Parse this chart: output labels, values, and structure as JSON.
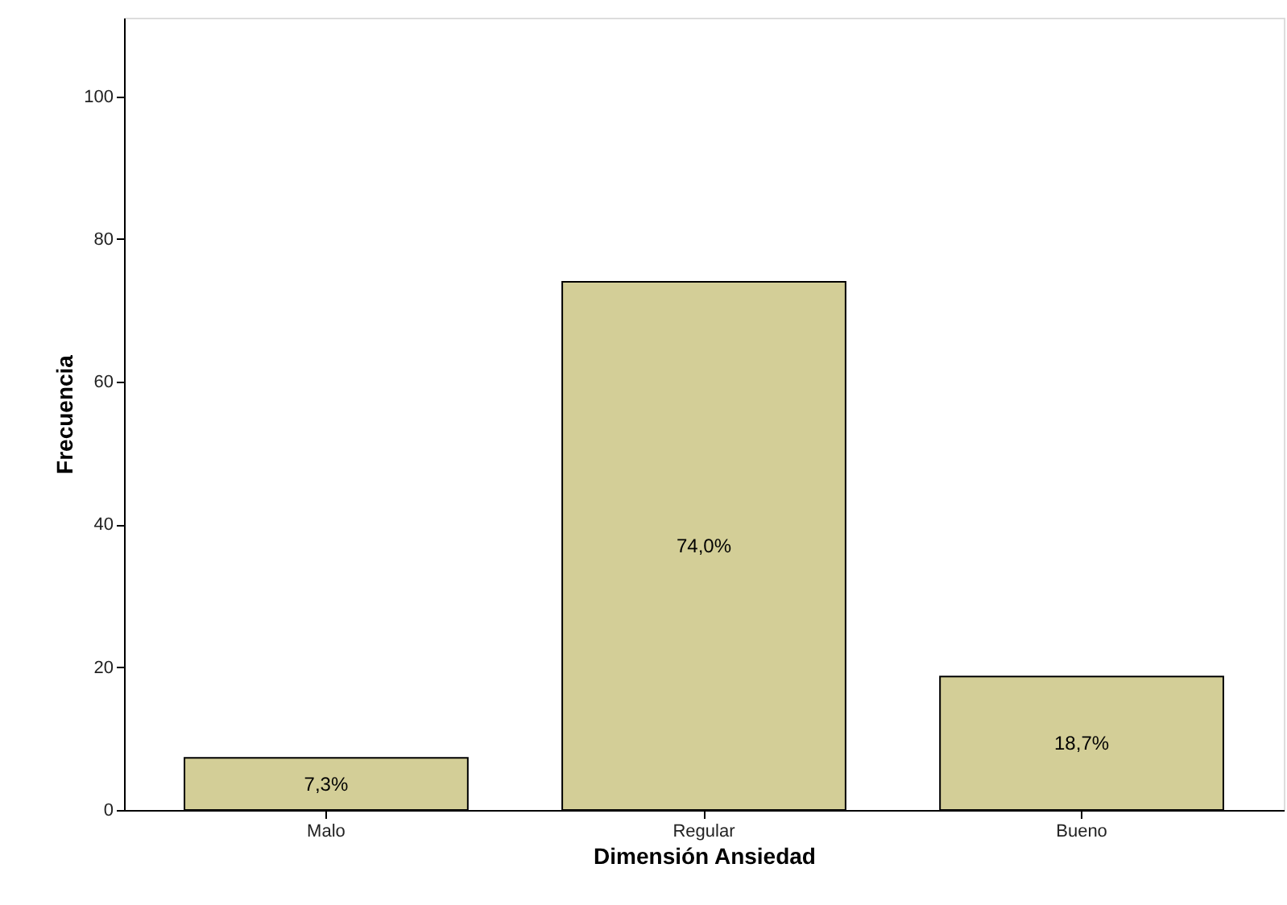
{
  "chart_data": {
    "type": "bar",
    "xlabel": "Dimensión Ansiedad",
    "ylabel": "Frecuencia",
    "categories": [
      "Malo",
      "Regular",
      "Bueno"
    ],
    "values": [
      7.3,
      74,
      18.7
    ],
    "value_labels": [
      "7,3%",
      "74,0%",
      "18,7%"
    ],
    "color": "#d3ce97",
    "ylim": [
      0,
      111
    ],
    "yticks": [
      0,
      20,
      40,
      60,
      80,
      100
    ],
    "grid": false
  }
}
